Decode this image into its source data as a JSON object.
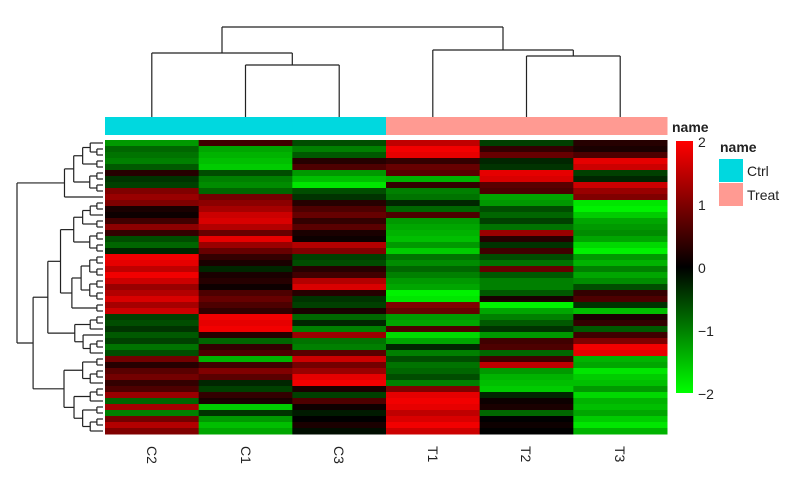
{
  "chart_data": {
    "type": "heatmap",
    "columns": [
      "C2",
      "C1",
      "C3",
      "T1",
      "T2",
      "T3"
    ],
    "column_groups": [
      "Ctrl",
      "Ctrl",
      "Ctrl",
      "Treat",
      "Treat",
      "Treat"
    ],
    "color_scale": {
      "min": -2,
      "mid": 0,
      "max": 2,
      "low_color": "#00ff00",
      "mid_color": "#000000",
      "high_color": "#ff0000"
    },
    "colorbar_title": "name",
    "colorbar_ticks": [
      "2",
      "1",
      "0",
      "−1",
      "−2"
    ],
    "colorbar_tick_values": [
      2,
      1,
      0,
      -1,
      -2
    ],
    "legend": {
      "title": "name",
      "placement": "right",
      "items": [
        {
          "label": "Ctrl",
          "color": "#00d8df"
        },
        {
          "label": "Treat",
          "color": "#ff9a92"
        }
      ]
    },
    "row_dendrogram": true,
    "column_dendrogram": true,
    "values": [
      [
        -1.2,
        0.5,
        -0.6,
        1.5,
        -0.5,
        0.3
      ],
      [
        -0.8,
        -1.3,
        -1.0,
        1.9,
        0.4,
        0.2
      ],
      [
        -0.9,
        -1.4,
        -0.7,
        1.8,
        0.8,
        0.6
      ],
      [
        -1.0,
        -1.5,
        0.3,
        0.4,
        -0.3,
        1.8
      ],
      [
        -0.7,
        -1.6,
        0.6,
        0.8,
        -0.4,
        1.6
      ],
      [
        0.3,
        -0.6,
        -1.2,
        0.7,
        1.8,
        -0.5
      ],
      [
        -0.4,
        -1.0,
        -1.5,
        -1.4,
        1.7,
        -0.3
      ],
      [
        -0.5,
        -1.1,
        -1.8,
        0.4,
        0.7,
        1.6
      ],
      [
        1.0,
        -0.8,
        -0.6,
        -1.0,
        0.6,
        1.2
      ],
      [
        1.2,
        0.9,
        -0.4,
        -0.9,
        -1.3,
        1.0
      ],
      [
        1.0,
        1.1,
        0.3,
        -0.3,
        -1.2,
        -1.8
      ],
      [
        0.2,
        1.3,
        0.6,
        -0.8,
        -0.6,
        -1.9
      ],
      [
        0.1,
        1.6,
        0.8,
        0.6,
        -0.8,
        -1.6
      ],
      [
        0.5,
        1.7,
        0.4,
        -1.2,
        -0.5,
        -1.3
      ],
      [
        1.1,
        1.4,
        0.7,
        -1.3,
        -0.9,
        -1.2
      ],
      [
        0.4,
        0.8,
        0.2,
        -1.4,
        1.2,
        -1.1
      ],
      [
        -0.6,
        1.8,
        0.1,
        -1.5,
        0.3,
        -1.3
      ],
      [
        -0.8,
        1.2,
        1.4,
        -1.2,
        -0.4,
        -1.7
      ],
      [
        -0.3,
        0.8,
        1.0,
        -1.6,
        0.5,
        -1.9
      ],
      [
        1.9,
        0.4,
        -0.5,
        -0.9,
        -0.6,
        -1.2
      ],
      [
        1.8,
        0.2,
        -0.6,
        -1.1,
        -0.9,
        -1.4
      ],
      [
        1.5,
        -0.3,
        0.3,
        -0.8,
        0.8,
        -1.0
      ],
      [
        1.9,
        0.2,
        0.5,
        -1.0,
        -0.7,
        -1.3
      ],
      [
        1.6,
        0.3,
        1.4,
        -1.2,
        -1.0,
        -1.1
      ],
      [
        1.2,
        0.1,
        1.7,
        -1.3,
        -1.0,
        -0.6
      ],
      [
        1.4,
        0.6,
        0.3,
        -1.9,
        -0.7,
        0.4
      ],
      [
        1.7,
        0.8,
        -0.4,
        -1.8,
        0.2,
        0.6
      ],
      [
        1.3,
        0.6,
        -0.5,
        1.0,
        -1.9,
        -0.4
      ],
      [
        1.6,
        0.4,
        0.2,
        0.8,
        -1.3,
        -1.5
      ],
      [
        -0.5,
        1.9,
        -0.8,
        -1.2,
        -1.0,
        0.2
      ],
      [
        -0.6,
        1.8,
        -0.3,
        -1.3,
        -0.7,
        0.4
      ],
      [
        -0.4,
        1.9,
        -1.0,
        0.6,
        -0.4,
        -0.7
      ],
      [
        -0.7,
        0.3,
        1.2,
        -1.7,
        -1.2,
        0.5
      ],
      [
        -0.5,
        -0.8,
        -0.9,
        -1.3,
        0.5,
        1.0
      ],
      [
        -0.9,
        0.4,
        -1.0,
        -0.3,
        0.6,
        1.9
      ],
      [
        -0.6,
        0.6,
        0.7,
        -1.0,
        -0.8,
        1.8
      ],
      [
        0.9,
        -1.4,
        1.6,
        -0.6,
        0.5,
        -1.4
      ],
      [
        0.3,
        0.5,
        0.9,
        -0.9,
        1.5,
        -1.3
      ],
      [
        0.7,
        1.0,
        1.2,
        -0.8,
        -1.2,
        -1.8
      ],
      [
        0.9,
        0.7,
        1.8,
        -0.6,
        -1.4,
        -1.6
      ],
      [
        0.4,
        -0.3,
        1.9,
        -1.0,
        -1.5,
        -1.5
      ],
      [
        0.6,
        -0.5,
        0.2,
        1.0,
        -1.6,
        -1.2
      ],
      [
        1.2,
        0.4,
        -0.5,
        1.8,
        -0.3,
        -1.7
      ],
      [
        -0.8,
        0.2,
        0.6,
        1.9,
        0.1,
        -1.4
      ],
      [
        1.3,
        -1.6,
        0.1,
        1.8,
        0.2,
        -1.5
      ],
      [
        -1.0,
        -0.4,
        -0.2,
        1.5,
        -0.8,
        -1.3
      ],
      [
        0.9,
        -1.2,
        0.0,
        1.7,
        0.0,
        -1.6
      ],
      [
        1.4,
        -1.5,
        0.2,
        1.9,
        0.1,
        -1.8
      ],
      [
        1.0,
        -1.3,
        -0.1,
        1.6,
        0.0,
        -1.4
      ]
    ]
  }
}
